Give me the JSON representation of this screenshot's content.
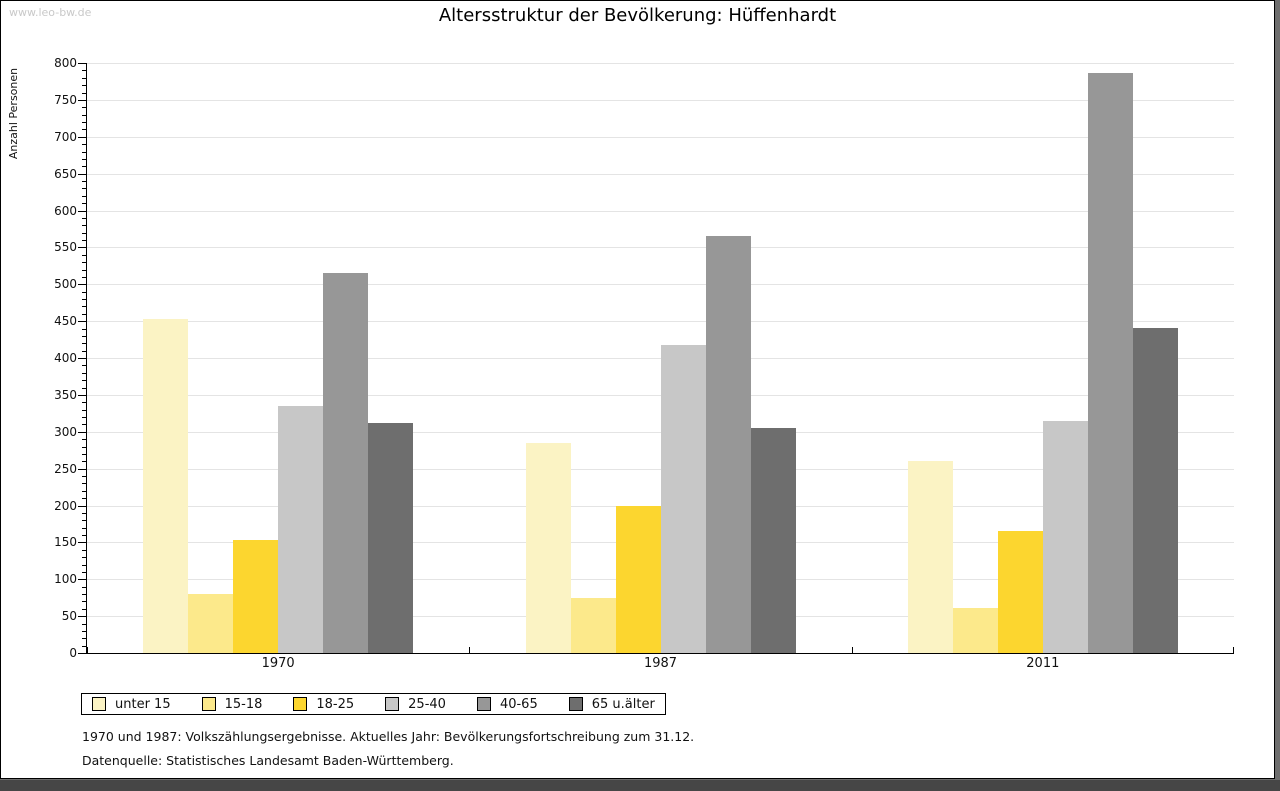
{
  "watermark": "www.leo-bw.de",
  "title": "Altersstruktur der Bevölkerung: Hüffenhardt",
  "chart_data": {
    "type": "bar",
    "title": "Altersstruktur der Bevölkerung: Hüffenhardt",
    "ylabel": "Anzahl Personen",
    "xlabel": "",
    "ylim": [
      0,
      800
    ],
    "ytick_step": 50,
    "minor_tick_step": 10,
    "grid": true,
    "legend_position": "bottom",
    "categories": [
      "1970",
      "1987",
      "2011"
    ],
    "series": [
      {
        "name": "unter 15",
        "color": "#FBF3C4",
        "values": [
          453,
          285,
          260
        ]
      },
      {
        "name": "15-18",
        "color": "#FCE98B",
        "values": [
          80,
          74,
          61
        ]
      },
      {
        "name": "18-25",
        "color": "#FCD62F",
        "values": [
          153,
          199,
          166
        ]
      },
      {
        "name": "25-40",
        "color": "#C7C7C7",
        "values": [
          335,
          418,
          315
        ]
      },
      {
        "name": "40-65",
        "color": "#979797",
        "values": [
          515,
          566,
          787
        ]
      },
      {
        "name": "65 u.älter",
        "color": "#6E6E6E",
        "values": [
          312,
          305,
          441
        ]
      }
    ]
  },
  "footnotes": [
    "1970 und 1987: Volkszählungsergebnisse. Aktuelles Jahr: Bevölkerungsfortschreibung zum 31.12.",
    "Datenquelle: Statistisches Landesamt Baden-Württemberg."
  ]
}
